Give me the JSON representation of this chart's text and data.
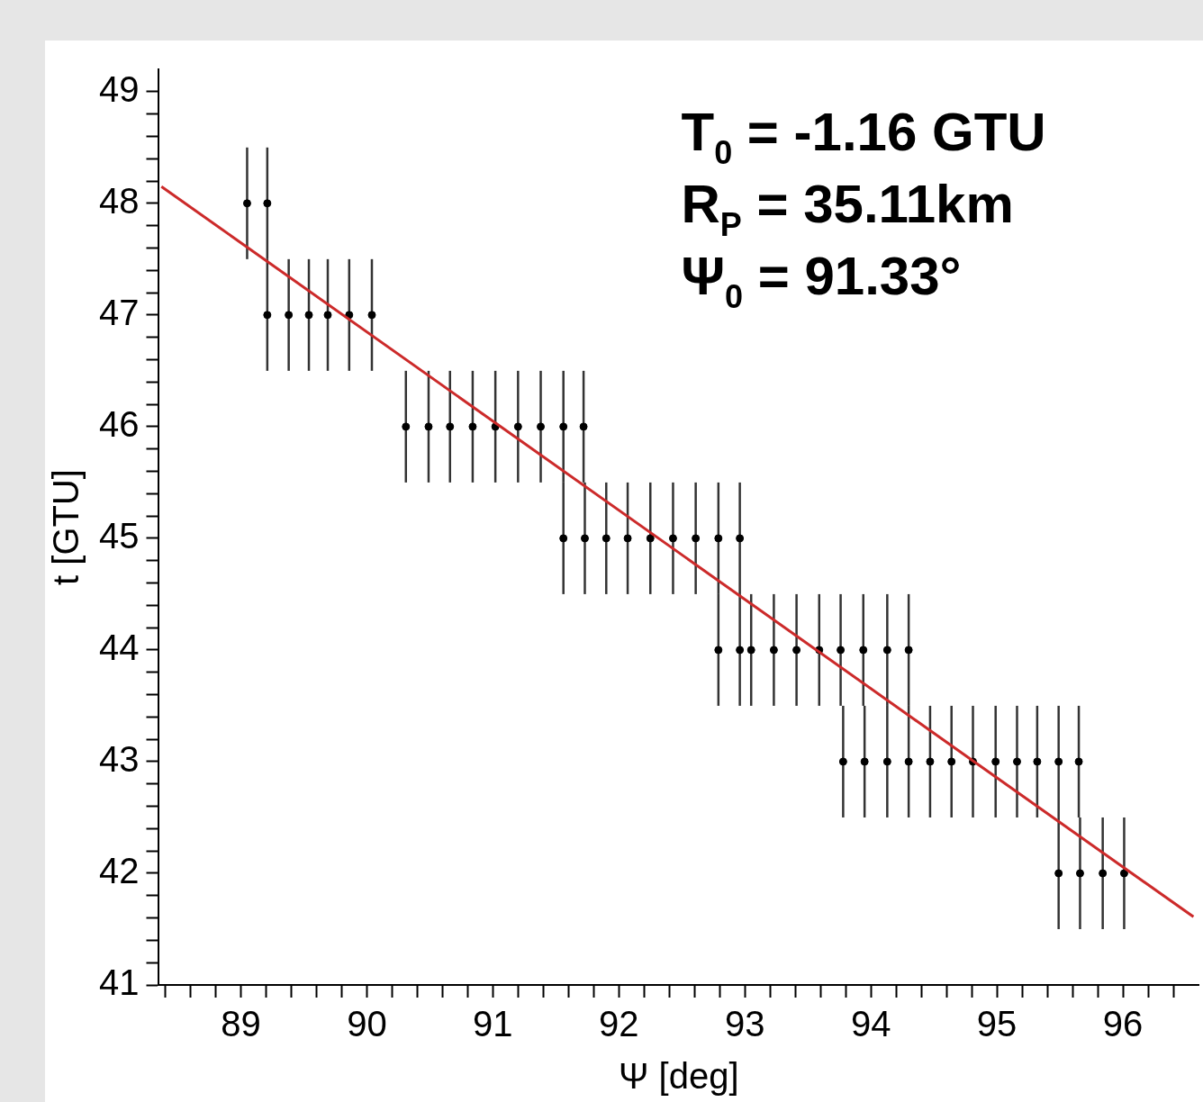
{
  "chart_data": {
    "type": "scatter",
    "xlabel": "Ψ [deg]",
    "ylabel": "t [GTU]",
    "annotations": [
      "T$_{0}$ = -1.16 GTU",
      "R$_{P}$ = 35.11km",
      "Ψ$_{0}$ = 91.33°"
    ],
    "xlim": [
      88.35,
      96.6
    ],
    "ylim": [
      41,
      49.2
    ],
    "xticks": [
      {
        "value": 88.4,
        "label": null
      },
      {
        "value": 88.6,
        "label": null
      },
      {
        "value": 88.8,
        "label": null
      },
      89,
      {
        "value": 89.2,
        "label": null
      },
      {
        "value": 89.4,
        "label": null
      },
      {
        "value": 89.6,
        "label": null
      },
      {
        "value": 89.8,
        "label": null
      },
      90,
      {
        "value": 90.2,
        "label": null
      },
      {
        "value": 90.4,
        "label": null
      },
      {
        "value": 90.6,
        "label": null
      },
      {
        "value": 90.8,
        "label": null
      },
      91,
      {
        "value": 91.2,
        "label": null
      },
      {
        "value": 91.4,
        "label": null
      },
      {
        "value": 91.6,
        "label": null
      },
      {
        "value": 91.8,
        "label": null
      },
      92,
      {
        "value": 92.2,
        "label": null
      },
      {
        "value": 92.4,
        "label": null
      },
      {
        "value": 92.6,
        "label": null
      },
      {
        "value": 92.8,
        "label": null
      },
      93,
      {
        "value": 93.2,
        "label": null
      },
      {
        "value": 93.4,
        "label": null
      },
      {
        "value": 93.6,
        "label": null
      },
      {
        "value": 93.8,
        "label": null
      },
      94,
      {
        "value": 94.2,
        "label": null
      },
      {
        "value": 94.4,
        "label": null
      },
      {
        "value": 94.6,
        "label": null
      },
      {
        "value": 94.8,
        "label": null
      },
      95,
      {
        "value": 95.2,
        "label": null
      },
      {
        "value": 95.4,
        "label": null
      },
      {
        "value": 95.6,
        "label": null
      },
      {
        "value": 95.8,
        "label": null
      },
      96,
      {
        "value": 96.2,
        "label": null
      },
      {
        "value": 96.4,
        "label": null
      }
    ],
    "yticks": [
      41,
      {
        "value": 41.2,
        "label": null
      },
      {
        "value": 41.4,
        "label": null
      },
      {
        "value": 41.6,
        "label": null
      },
      {
        "value": 41.8,
        "label": null
      },
      42,
      {
        "value": 42.2,
        "label": null
      },
      {
        "value": 42.4,
        "label": null
      },
      {
        "value": 42.6,
        "label": null
      },
      {
        "value": 42.8,
        "label": null
      },
      43,
      {
        "value": 43.2,
        "label": null
      },
      {
        "value": 43.4,
        "label": null
      },
      {
        "value": 43.6,
        "label": null
      },
      {
        "value": 43.8,
        "label": null
      },
      44,
      {
        "value": 44.2,
        "label": null
      },
      {
        "value": 44.4,
        "label": null
      },
      {
        "value": 44.6,
        "label": null
      },
      {
        "value": 44.8,
        "label": null
      },
      45,
      {
        "value": 45.2,
        "label": null
      },
      {
        "value": 45.4,
        "label": null
      },
      {
        "value": 45.6,
        "label": null
      },
      {
        "value": 45.8,
        "label": null
      },
      46,
      {
        "value": 46.2,
        "label": null
      },
      {
        "value": 46.4,
        "label": null
      },
      {
        "value": 46.6,
        "label": null
      },
      {
        "value": 46.8,
        "label": null
      },
      47,
      {
        "value": 47.2,
        "label": null
      },
      {
        "value": 47.4,
        "label": null
      },
      {
        "value": 47.6,
        "label": null
      },
      {
        "value": 47.8,
        "label": null
      },
      48,
      {
        "value": 48.2,
        "label": null
      },
      {
        "value": 48.4,
        "label": null
      },
      {
        "value": 48.6,
        "label": null
      },
      {
        "value": 48.8,
        "label": null
      },
      49
    ],
    "grid": false,
    "legend": false,
    "series": [
      {
        "color": "#000000",
        "marker": "circle",
        "x": [
          89.05,
          89.21,
          89.21,
          89.38,
          89.54,
          89.69,
          89.86,
          90.04,
          90.31,
          90.49,
          90.66,
          90.84,
          91.02,
          91.2,
          91.38,
          91.56,
          91.72,
          91.56,
          91.73,
          91.9,
          92.07,
          92.25,
          92.43,
          92.61,
          92.79,
          92.96,
          92.79,
          92.96,
          93.05,
          93.23,
          93.41,
          93.59,
          93.76,
          93.94,
          94.13,
          94.3,
          93.78,
          93.95,
          94.13,
          94.3,
          94.47,
          94.64,
          94.81,
          94.99,
          95.16,
          95.32,
          95.49,
          95.65,
          95.49,
          95.66,
          95.84,
          96.01
        ],
        "values": [
          48,
          48,
          47,
          47,
          47,
          47,
          47,
          47,
          46,
          46,
          46,
          46,
          46,
          46,
          46,
          46,
          46,
          45,
          45,
          45,
          45,
          45,
          45,
          45,
          45,
          45,
          44,
          44,
          44,
          44,
          44,
          44,
          44,
          44,
          44,
          44,
          43,
          43,
          43,
          43,
          43,
          43,
          43,
          43,
          43,
          43,
          43,
          43,
          42,
          42,
          42,
          42
        ],
        "errors": [
          0.5,
          0.5,
          0.5,
          0.5,
          0.5,
          0.5,
          0.5,
          0.5,
          0.5,
          0.5,
          0.5,
          0.5,
          0.5,
          0.5,
          0.5,
          0.5,
          0.5,
          0.5,
          0.5,
          0.5,
          0.5,
          0.5,
          0.5,
          0.5,
          0.5,
          0.5,
          0.5,
          0.5,
          0.5,
          0.5,
          0.5,
          0.5,
          0.5,
          0.5,
          0.5,
          0.5,
          0.5,
          0.5,
          0.5,
          0.5,
          0.5,
          0.5,
          0.5,
          0.5,
          0.5,
          0.5,
          0.5,
          0.5,
          0.5,
          0.5,
          0.5,
          0.5
        ]
      },
      {
        "type": "line",
        "color": "#cc2a2a",
        "x": [
          88.37,
          96.56
        ],
        "values": [
          48.15,
          41.61
        ]
      }
    ]
  }
}
